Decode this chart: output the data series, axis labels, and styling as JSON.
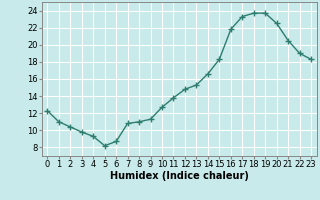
{
  "x": [
    0,
    1,
    2,
    3,
    4,
    5,
    6,
    7,
    8,
    9,
    10,
    11,
    12,
    13,
    14,
    15,
    16,
    17,
    18,
    19,
    20,
    21,
    22,
    23
  ],
  "y": [
    12.3,
    11.0,
    10.4,
    9.8,
    9.3,
    8.2,
    8.7,
    10.8,
    11.0,
    11.3,
    12.7,
    13.8,
    14.8,
    15.3,
    16.6,
    18.3,
    21.8,
    23.3,
    23.7,
    23.7,
    22.5,
    20.5,
    19.0,
    18.3
  ],
  "line_color": "#2e7d6e",
  "marker": "+",
  "bg_color": "#c8eaea",
  "grid_color": "#ffffff",
  "xlabel": "Humidex (Indice chaleur)",
  "ylim": [
    7,
    25
  ],
  "xlim": [
    -0.5,
    23.5
  ],
  "yticks": [
    8,
    10,
    12,
    14,
    16,
    18,
    20,
    22,
    24
  ],
  "xticks": [
    0,
    1,
    2,
    3,
    4,
    5,
    6,
    7,
    8,
    9,
    10,
    11,
    12,
    13,
    14,
    15,
    16,
    17,
    18,
    19,
    20,
    21,
    22,
    23
  ],
  "xlabel_fontsize": 7,
  "tick_fontsize": 6,
  "line_width": 1.0,
  "marker_size": 4
}
